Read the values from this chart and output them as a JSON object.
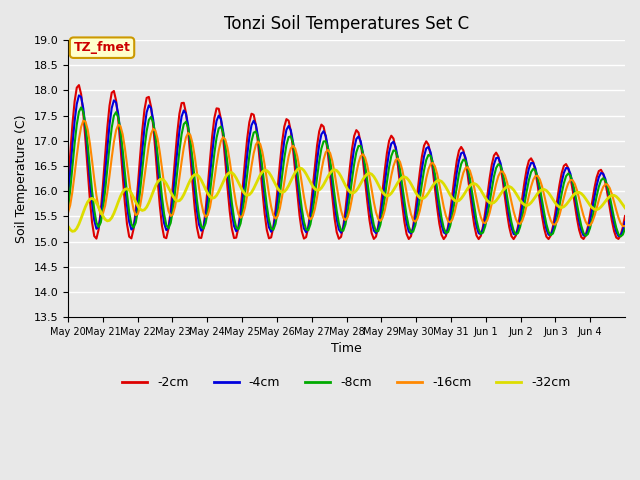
{
  "title": "Tonzi Soil Temperatures Set C",
  "xlabel": "Time",
  "ylabel": "Soil Temperature (C)",
  "ylim": [
    13.5,
    19.0
  ],
  "background_color": "#e8e8e8",
  "annotation_text": "TZ_fmet",
  "annotation_bg": "#ffffcc",
  "annotation_border": "#cc9900",
  "annotation_text_color": "#cc0000",
  "x_tick_labels": [
    "May 20",
    "May 21",
    "May 22",
    "May 23",
    "May 24",
    "May 25",
    "May 26",
    "May 27",
    "May 28",
    "May 29",
    "May 30",
    "May 31",
    "Jun 1",
    "Jun 2",
    "Jun 3",
    "Jun 4"
  ],
  "y_ticks": [
    13.5,
    14.0,
    14.5,
    15.0,
    15.5,
    16.0,
    16.5,
    17.0,
    17.5,
    18.0,
    18.5,
    19.0
  ],
  "series": {
    "-2cm": {
      "color": "#dd0000",
      "lw": 1.5
    },
    "-4cm": {
      "color": "#0000dd",
      "lw": 1.5
    },
    "-8cm": {
      "color": "#00aa00",
      "lw": 1.5
    },
    "-16cm": {
      "color": "#ff8800",
      "lw": 1.5
    },
    "-32cm": {
      "color": "#dddd00",
      "lw": 2.0
    }
  },
  "n_days": 16,
  "n_points": 256
}
